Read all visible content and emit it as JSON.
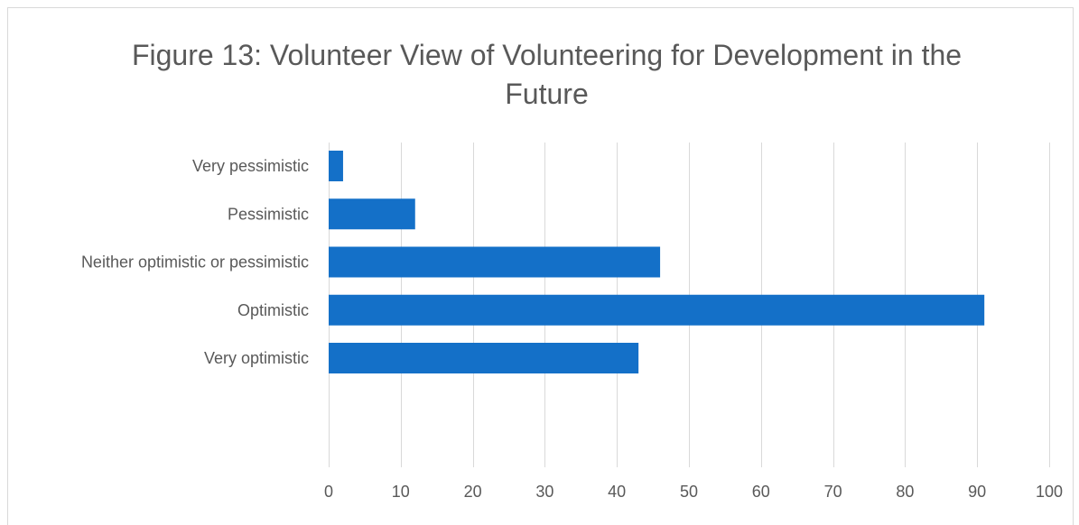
{
  "chart_data": {
    "type": "bar",
    "orientation": "horizontal",
    "title": "Figure 13: Volunteer View of Volunteering for Development in the Future",
    "categories": [
      "Very pessimistic",
      "Pessimistic",
      "Neither optimistic or pessimistic",
      "Optimistic",
      "Very optimistic"
    ],
    "values": [
      2,
      12,
      46,
      91,
      43
    ],
    "xlim": [
      0,
      100
    ],
    "x_ticks": [
      "0",
      "10",
      "20",
      "30",
      "40",
      "50",
      "60",
      "70",
      "80",
      "90",
      "100"
    ],
    "xlabel": "",
    "ylabel": "",
    "grid": "vertical",
    "legend": "none",
    "bar_color": "#1470c8",
    "grid_color": "#d9d9d9"
  }
}
